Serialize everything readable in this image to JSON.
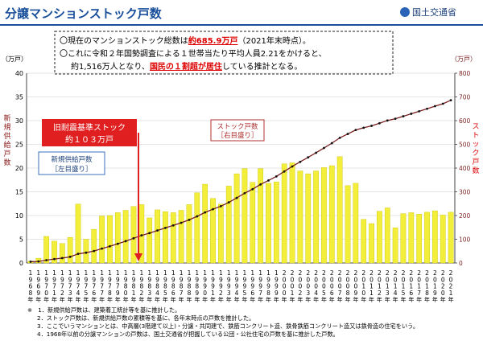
{
  "header": {
    "title": "分譲マンションストック戸数",
    "logo": "国土交通省"
  },
  "info": {
    "line1": [
      "〇現在のマンションストック総数は",
      "約685.9万戸",
      "（2021年末時点）。"
    ],
    "line2": "〇これに令和２年国勢調査による１世帯当たり平均人員2.21をかけると、",
    "line3": [
      "約1,516万人となり、",
      "国民の１割超が居住",
      "している推計となる。"
    ]
  },
  "chart_data": {
    "type": "bar_line",
    "categories": [
      "1968",
      "1969",
      "1970",
      "1971",
      "1972",
      "1973",
      "1974",
      "1975",
      "1976",
      "1977",
      "1978",
      "1979",
      "1980",
      "1981",
      "1982",
      "1983",
      "1984",
      "1985",
      "1986",
      "1987",
      "1988",
      "1989",
      "1990",
      "1991",
      "1992",
      "1993",
      "1994",
      "1995",
      "1996",
      "1997",
      "1998",
      "1999",
      "2000",
      "2001",
      "2002",
      "2003",
      "2004",
      "2005",
      "2006",
      "2007",
      "2008",
      "2009",
      "2010",
      "2011",
      "2012",
      "2013",
      "2014",
      "2015",
      "2016",
      "2017",
      "2018",
      "2019",
      "2020",
      "2021"
    ],
    "year_suffix": "年",
    "series": [
      {
        "name": "新規供給戸数",
        "scale_label": "［左目盛り］",
        "color": "#f2ee3a",
        "values": [
          0.4,
          1.0,
          5.6,
          4.6,
          4.1,
          5.4,
          12.4,
          5.0,
          7.1,
          9.9,
          10.0,
          10.6,
          11.1,
          11.9,
          12.3,
          9.5,
          11.2,
          10.8,
          10.6,
          11.1,
          12.3,
          14.8,
          16.6,
          13.6,
          12.4,
          16.2,
          18.8,
          19.9,
          17.0,
          19.9,
          16.8,
          17.1,
          20.9,
          21.1,
          19.4,
          18.8,
          19.4,
          20.1,
          20.5,
          22.4,
          16.3,
          16.8,
          9.2,
          8.3,
          10.9,
          11.6,
          7.4,
          10.4,
          10.6,
          10.3,
          10.7,
          11.0,
          10.1,
          10.7
        ]
      },
      {
        "name": "ストック戸数",
        "scale_label": "［右目盛り］",
        "color": "#7a1f1f",
        "axis": "y2",
        "values": [
          5.3,
          6.3,
          11.9,
          16.5,
          20.6,
          26.0,
          38.4,
          43.4,
          50.5,
          60.4,
          70.4,
          81.0,
          92.1,
          104.0,
          116.3,
          125.8,
          137.0,
          147.8,
          158.4,
          169.5,
          181.8,
          196.6,
          213.2,
          226.8,
          239.2,
          255.4,
          274.2,
          294.1,
          311.1,
          331.0,
          347.8,
          364.9,
          385.8,
          406.9,
          426.3,
          445.1,
          464.5,
          484.6,
          505.1,
          527.5,
          543.8,
          560.6,
          569.8,
          578.1,
          589.0,
          600.6,
          608.0,
          618.4,
          629.0,
          639.3,
          650.0,
          661.0,
          671.1,
          685.9
        ]
      }
    ],
    "ylim": [
      0,
      40
    ],
    "yticks": [
      0,
      5,
      10,
      15,
      20,
      25,
      30,
      35,
      40
    ],
    "y2lim": [
      0,
      800
    ],
    "y2ticks": [
      0,
      100,
      200,
      300,
      400,
      500,
      600,
      700,
      800
    ],
    "y_unit": "（万戸）",
    "y2_unit": "（万戸）",
    "ylabel": "新規供給戸数",
    "y2label": "ストック戸数",
    "annotation": [
      "旧耐震基準ストック",
      "約１０３万戸"
    ],
    "grid": true
  },
  "notes": [
    "※　1．新規供給戸数は、建築着工統計等を基に推計した。",
    "2．ストック戸数は、新規供給戸数の累積等を基に、各年末時点の戸数を推計した。",
    "3．ここでいうマンションとは、中高層(3階建て以上)・分譲・共同建で、鉄筋コンクリート造、鉄骨鉄筋コンクリート造又は鉄骨造の住宅をいう。",
    "4．1968年以前の分譲マンションの戸数は、国土交通省が把握している公団・公社住宅の戸数を基に推計した戸数。"
  ]
}
